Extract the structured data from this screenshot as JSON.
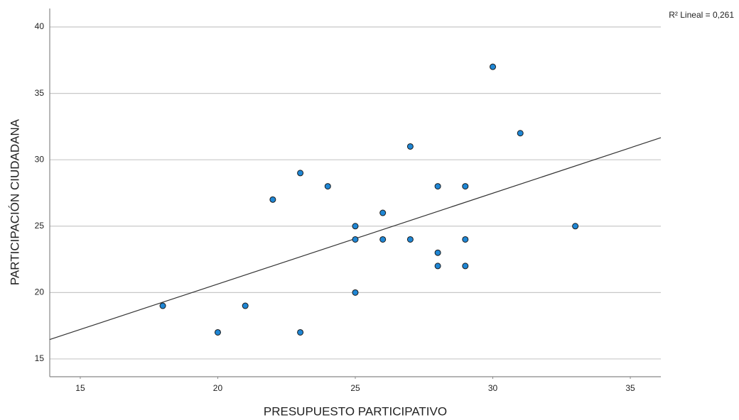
{
  "chart_data": {
    "type": "scatter",
    "x_label": "PRESUPUESTO PARTICIPATIVO",
    "y_label": "PARTICIPACIÓN CIUDADANA",
    "annotation": "R² Lineal = 0,261",
    "x": [
      30,
      31,
      27,
      23,
      24,
      28,
      29,
      22,
      26,
      25,
      33,
      25,
      26,
      27,
      29,
      28,
      28,
      29,
      25,
      18,
      21,
      20,
      23
    ],
    "y": [
      37,
      32,
      31,
      29,
      28,
      28,
      28,
      27,
      26,
      25,
      25,
      24,
      24,
      24,
      24,
      23,
      22,
      22,
      20,
      19,
      19,
      17,
      17
    ],
    "color": "#1f86d4",
    "trend_line": {
      "x": [
        13.89,
        36.11
      ],
      "y": [
        16.46,
        31.66
      ],
      "color": "#333333"
    },
    "xlim": [
      13.89,
      36.11
    ],
    "ylim": [
      13.66,
      41.39
    ],
    "xticks": [
      15,
      20,
      25,
      30,
      35
    ],
    "yticks": [
      15,
      20,
      25,
      30,
      35,
      40
    ],
    "grid": true
  }
}
